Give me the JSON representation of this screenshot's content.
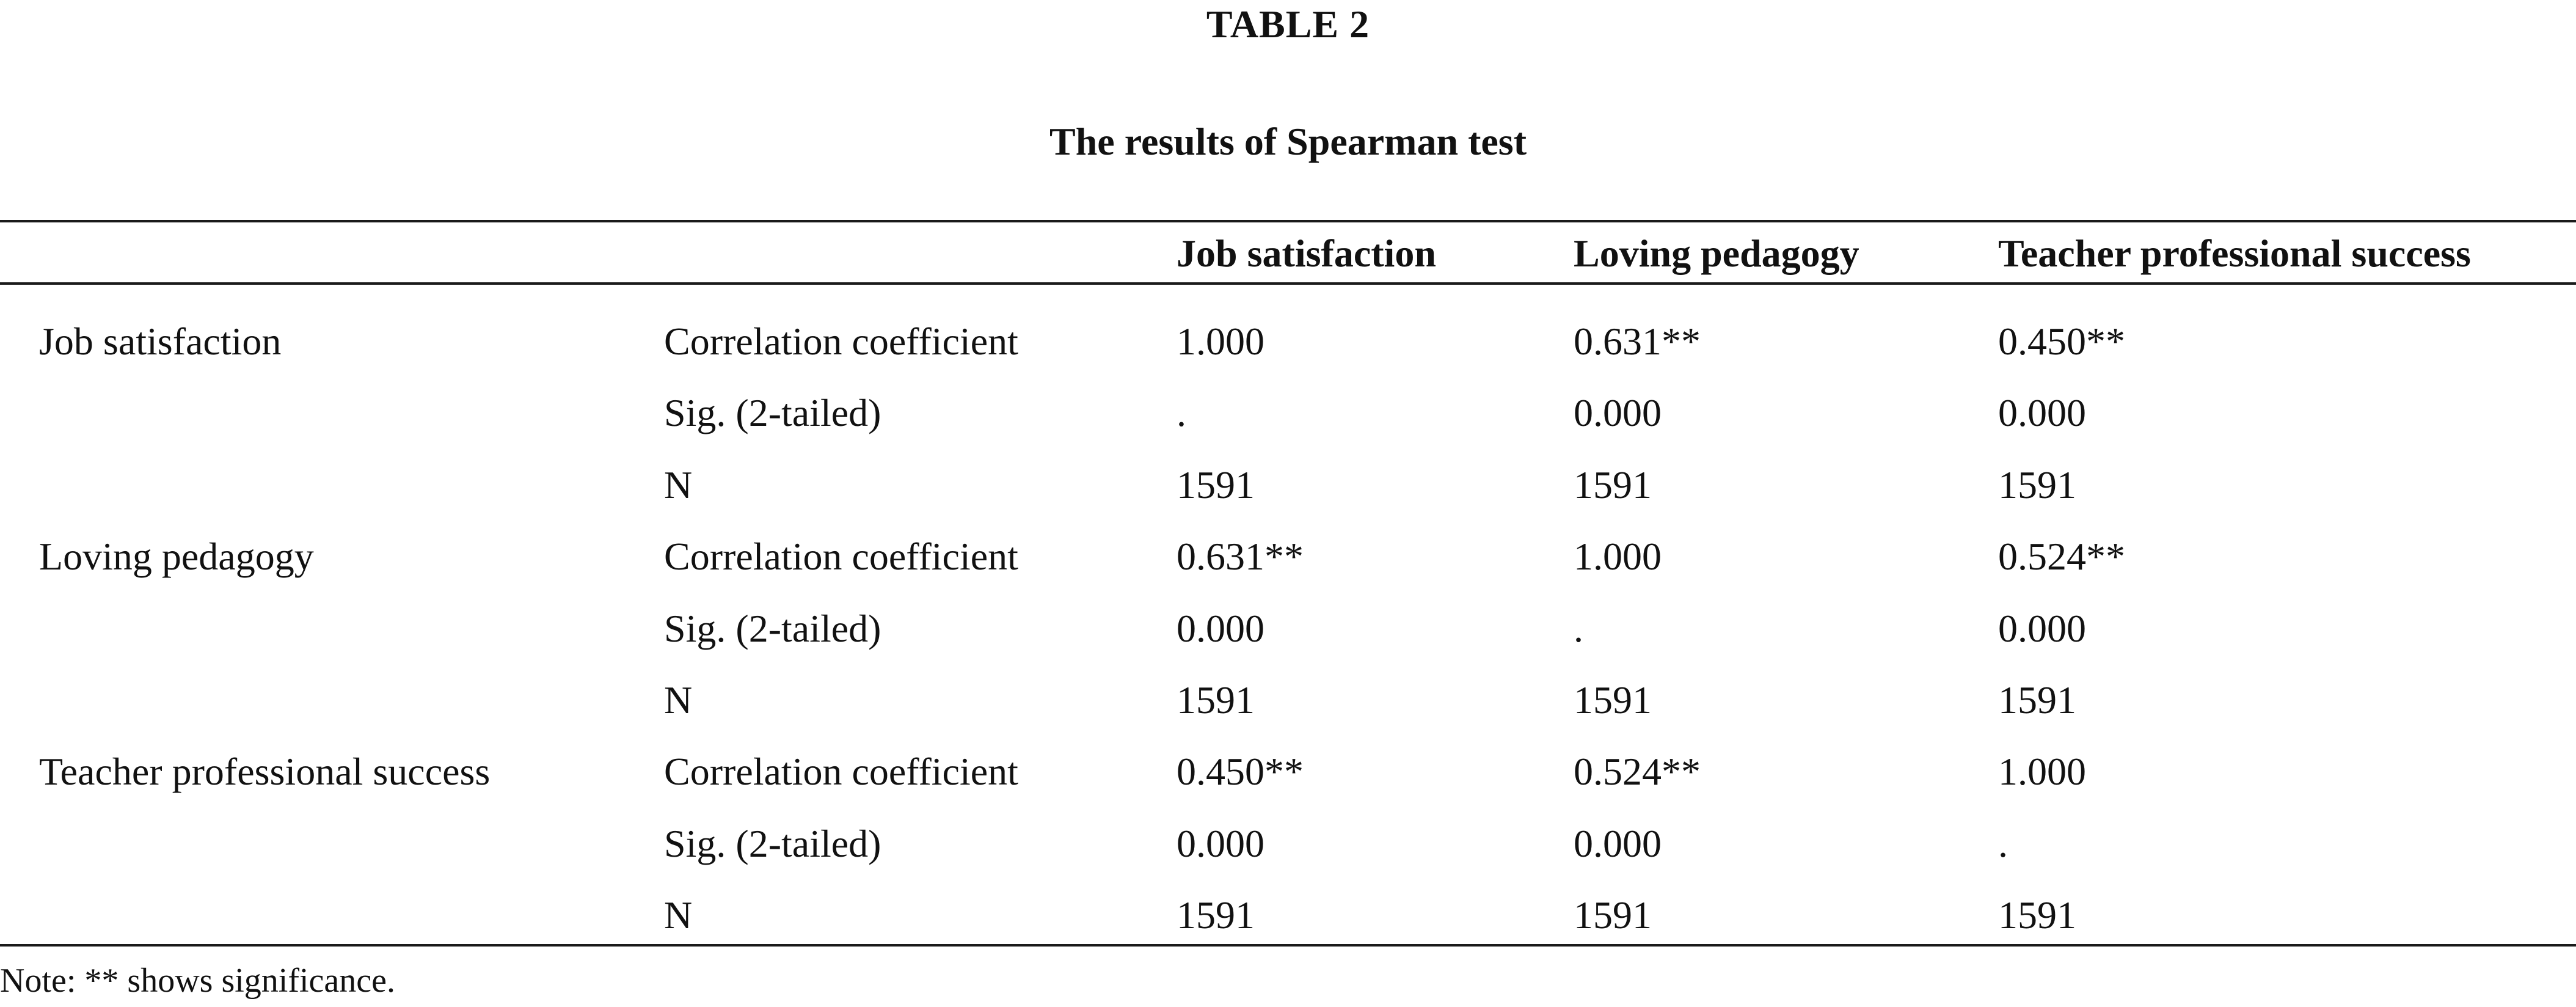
{
  "table": {
    "label": "TABLE 2",
    "title": "The results of Spearman test",
    "columns": [
      "",
      "",
      "Job satisfaction",
      "Loving pedagogy",
      "Teacher professional success"
    ],
    "rows": [
      [
        "Job satisfaction",
        "Correlation coefficient",
        "1.000",
        "0.631**",
        "0.450**"
      ],
      [
        "",
        "Sig. (2-tailed)",
        ".",
        "0.000",
        "0.000"
      ],
      [
        "",
        "N",
        "1591",
        "1591",
        "1591"
      ],
      [
        "Loving pedagogy",
        "Correlation coefficient",
        "0.631**",
        "1.000",
        "0.524**"
      ],
      [
        "",
        "Sig. (2-tailed)",
        "0.000",
        ".",
        "0.000"
      ],
      [
        "",
        "N",
        "1591",
        "1591",
        "1591"
      ],
      [
        "Teacher professional success",
        "Correlation coefficient",
        "0.450**",
        "0.524**",
        "1.000"
      ],
      [
        "",
        "Sig. (2-tailed)",
        "0.000",
        "0.000",
        "."
      ],
      [
        "",
        "N",
        "1591",
        "1591",
        "1591"
      ]
    ],
    "note": "Note: ** shows significance."
  }
}
